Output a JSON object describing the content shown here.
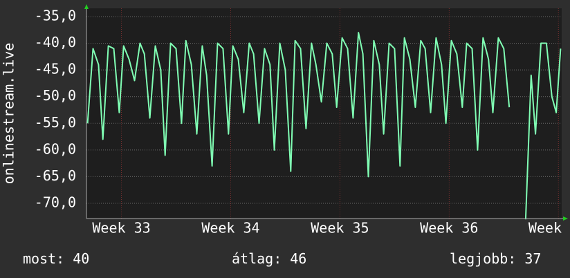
{
  "chart_data": {
    "type": "line",
    "ylabel": "onlinestream.live",
    "xlim": [
      32.68,
      37.03
    ],
    "xticks": [
      {
        "value": 33,
        "label": "Week 33"
      },
      {
        "value": 34,
        "label": "Week 34"
      },
      {
        "value": 35,
        "label": "Week 35"
      },
      {
        "value": 36,
        "label": "Week 36"
      },
      {
        "value": 37,
        "label": "Week"
      }
    ],
    "ylim": [
      -72.85,
      -33.45
    ],
    "yticks": [
      {
        "value": -35,
        "label": "-35,0"
      },
      {
        "value": -40,
        "label": "-40,0"
      },
      {
        "value": -45,
        "label": "-45,0"
      },
      {
        "value": -50,
        "label": "-50,0"
      },
      {
        "value": -55,
        "label": "-55,0"
      },
      {
        "value": -60,
        "label": "-60,0"
      },
      {
        "value": -65,
        "label": "-65,0"
      },
      {
        "value": -70,
        "label": "-70,0"
      }
    ],
    "grid": true,
    "series": [
      {
        "color": "#80ffb4",
        "x": [
          32.69,
          32.74,
          32.79,
          32.83,
          32.88,
          32.93,
          32.98,
          33.02,
          33.07,
          33.12,
          33.17,
          33.21,
          33.26,
          33.31,
          33.36,
          33.4,
          33.45,
          33.5,
          33.55,
          33.59,
          33.64,
          33.69,
          33.74,
          33.78,
          33.83,
          33.88,
          33.93,
          33.98,
          34.02,
          34.07,
          34.12,
          34.17,
          34.21,
          34.26,
          34.31,
          34.36,
          34.4,
          34.45,
          34.5,
          34.55,
          34.59,
          34.64,
          34.69,
          34.74,
          34.78,
          34.83,
          34.88,
          34.93,
          34.97,
          35.02,
          35.07,
          35.12,
          35.17,
          35.21,
          35.26,
          35.31,
          35.36,
          35.4,
          35.45,
          35.5,
          35.55,
          35.59,
          35.64,
          35.69,
          35.74,
          35.78,
          35.83,
          35.88,
          35.93,
          35.97,
          36.02,
          36.07,
          36.12,
          36.16,
          36.21,
          36.26,
          36.31,
          36.36,
          36.4,
          36.45,
          36.5,
          36.55,
          36.62,
          36.7,
          36.75,
          36.79,
          36.84,
          36.89,
          36.94,
          36.98,
          37.02
        ],
        "values": [
          -55,
          -41,
          -44,
          -58,
          -40.5,
          -41,
          -53,
          -40.5,
          -43,
          -47,
          -40,
          -42,
          -54,
          -40.5,
          -45,
          -61,
          -40,
          -41,
          -55,
          -39.5,
          -44,
          -57,
          -40.5,
          -46,
          -63,
          -40,
          -41,
          -57,
          -40.5,
          -43,
          -53,
          -40,
          -42,
          -55,
          -41,
          -44,
          -60,
          -40,
          -45,
          -64,
          -39.5,
          -41,
          -56,
          -40,
          -44,
          -51,
          -40,
          -42,
          -52,
          -39,
          -41,
          -54,
          -38,
          -42,
          -65,
          -39.5,
          -44,
          -57,
          -40,
          -41,
          -63,
          -39,
          -43,
          -52,
          -39.5,
          -41,
          -53,
          -39,
          -44,
          -55,
          -39.5,
          -42,
          -52,
          -40,
          -41,
          -60,
          -39,
          -43,
          -53,
          -39,
          -41,
          -52,
          null,
          -73,
          -46,
          -57,
          -40,
          -40,
          -50,
          -53,
          -41
        ]
      }
    ],
    "stats": [
      {
        "label": "most:",
        "value": 40
      },
      {
        "label": "átlag:",
        "value": 46
      },
      {
        "label": "legjobb:",
        "value": 37
      }
    ]
  }
}
